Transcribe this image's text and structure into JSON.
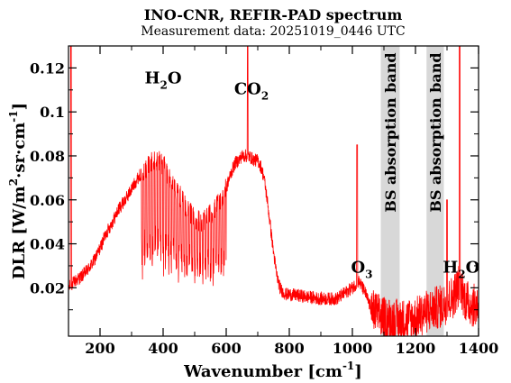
{
  "chart_data": {
    "type": "line",
    "title": "INO-CNR, REFIR-PAD spectrum",
    "subtitle": "Measurement data: 20251019_0446 UTC",
    "xlabel": {
      "main": "Wavenumber [cm",
      "sup": "-1",
      "end": "]"
    },
    "ylabel": {
      "a": "DLR [W/m",
      "sup": "2",
      "b": "·sr·cm",
      "sup2": "-1",
      "c": "]"
    },
    "xlim": [
      100,
      1400
    ],
    "ylim": [
      -0.002,
      0.13
    ],
    "xticks": [
      200,
      400,
      600,
      800,
      1000,
      1200,
      1400
    ],
    "xtick_labels": [
      "200",
      "400",
      "600",
      "800",
      "1000",
      "1200",
      "1400"
    ],
    "yticks": [
      0.02,
      0.04,
      0.06,
      0.08,
      0.1,
      0.12
    ],
    "ytick_labels": [
      "0.02",
      "0.04",
      "0.06",
      "0.08",
      "0.1",
      "0.12"
    ],
    "grid": false,
    "line_color": "#ff0000",
    "band_color": "#d8d8d8",
    "bands": [
      {
        "x0": 1090,
        "x1": 1150,
        "label": "BS absorption band"
      },
      {
        "x0": 1235,
        "x1": 1290,
        "label": "BS absorption band"
      }
    ],
    "annotations": [
      {
        "x": 400,
        "y": 0.113,
        "text": "H",
        "sub": "2",
        "tail": "O"
      },
      {
        "x": 680,
        "y": 0.108,
        "text": "CO",
        "sub": "2",
        "tail": ""
      },
      {
        "x": 1030,
        "y": 0.027,
        "text": "O",
        "sub": "3",
        "tail": ""
      },
      {
        "x": 1345,
        "y": 0.027,
        "text": "H",
        "sub": "2",
        "tail": "O"
      }
    ],
    "series": [
      {
        "x": [
          100,
          120,
          140,
          160,
          180,
          200,
          220,
          240,
          260,
          280,
          300,
          320,
          340,
          360,
          380,
          400,
          420,
          440,
          460,
          480,
          500,
          520,
          540,
          560,
          580,
          600,
          610,
          620,
          630,
          640,
          650,
          660,
          670,
          680,
          690,
          700,
          710,
          720,
          730,
          740,
          750,
          760,
          770,
          780,
          790,
          800,
          850,
          900,
          950,
          1000,
          1020,
          1040,
          1060,
          1080,
          1100,
          1150,
          1200,
          1220,
          1250,
          1290,
          1300,
          1320,
          1340,
          1360,
          1380,
          1400
        ],
        "values": [
          0.02,
          0.023,
          0.025,
          0.028,
          0.032,
          0.038,
          0.045,
          0.05,
          0.056,
          0.06,
          0.065,
          0.07,
          0.074,
          0.077,
          0.078,
          0.076,
          0.07,
          0.065,
          0.06,
          0.055,
          0.052,
          0.05,
          0.052,
          0.055,
          0.06,
          0.065,
          0.07,
          0.074,
          0.077,
          0.078,
          0.08,
          0.08,
          0.08,
          0.079,
          0.078,
          0.078,
          0.075,
          0.07,
          0.06,
          0.048,
          0.036,
          0.026,
          0.02,
          0.018,
          0.017,
          0.017,
          0.016,
          0.015,
          0.015,
          0.02,
          0.023,
          0.018,
          0.01,
          0.008,
          0.006,
          0.005,
          0.006,
          0.008,
          0.01,
          0.012,
          0.014,
          0.016,
          0.022,
          0.014,
          0.012,
          0.012
        ]
      }
    ]
  }
}
